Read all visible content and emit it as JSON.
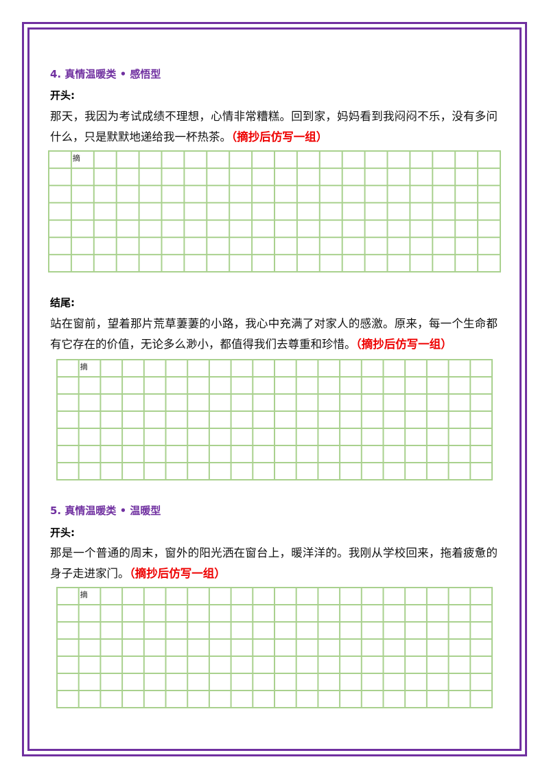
{
  "sections": [
    {
      "heading": "4. 真情温暖类 • 感悟型",
      "parts": [
        {
          "label": "开头:",
          "text": "那天，我因为考试成绩不理想，心情非常糟糕。回到家，妈妈看到我闷闷不乐，没有多问什么，只是默默地递给我一杯热茶。",
          "note": "（摘抄后仿写一组）",
          "grid_label": "摘"
        },
        {
          "label": "结尾:",
          "text": "站在窗前，望着那片荒草萋萋的小路，我心中充满了对家人的感激。原来，每一个生命都有它存在的价值，无论多么渺小，都值得我们去尊重和珍惜。",
          "note": "（摘抄后仿写一组）",
          "grid_label": "摘"
        }
      ]
    },
    {
      "heading": "5. 真情温暖类 • 温暖型",
      "parts": [
        {
          "label": "开头:",
          "text": "那是一个普通的周末，窗外的阳光洒在窗台上，暖洋洋的。我刚从学校回来，拖着疲惫的身子走进家门。",
          "note": "（摘抄后仿写一组）",
          "grid_label": "摘"
        }
      ]
    }
  ]
}
